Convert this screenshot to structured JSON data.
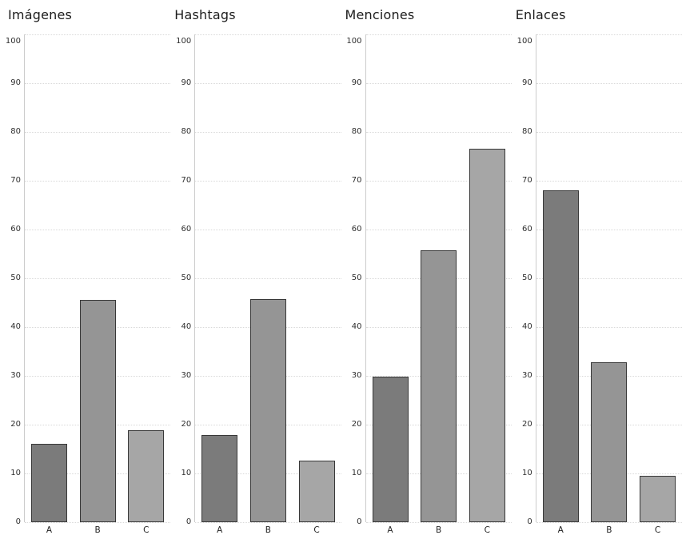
{
  "chart_data": {
    "type": "bar",
    "layout": "small-multiples: 4 vertical bar chart panels side by side, shared y-scale",
    "categories": [
      "A",
      "B",
      "C"
    ],
    "panels": [
      {
        "title": "Imágenes",
        "values": [
          16.0,
          45.5,
          18.9
        ]
      },
      {
        "title": "Hashtags",
        "values": [
          17.8,
          45.7,
          12.7
        ]
      },
      {
        "title": "Menciones",
        "values": [
          29.8,
          55.8,
          76.5
        ]
      },
      {
        "title": "Enlaces",
        "values": [
          68.1,
          32.8,
          9.5
        ]
      }
    ],
    "ylim": [
      0,
      100
    ],
    "yticks": [
      0,
      10,
      20,
      30,
      40,
      50,
      60,
      70,
      80,
      90,
      100
    ],
    "grid": true,
    "legend": "none",
    "bar_colors": [
      "#7b7b7b",
      "#959595",
      "#a6a6a6"
    ],
    "bar_border_color": "#383838",
    "gridline_color": "#d9d9d9",
    "axis_spine_color": "#cccccc",
    "background_color": "#ffffff",
    "title_color": "#1c1c1c",
    "tick_label_color": "#2e2e2e"
  }
}
